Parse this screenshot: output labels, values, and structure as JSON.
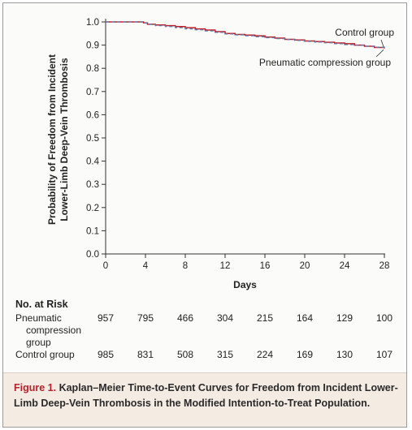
{
  "chart_data": {
    "type": "line",
    "ylabel_lines": [
      "Probability of Freedom from Incident",
      "Lower-Limb Deep-Vein Thrombosis"
    ],
    "xlabel": "Days",
    "xlim": [
      0,
      28
    ],
    "ylim": [
      0.0,
      1.0
    ],
    "x_ticks": [
      "0",
      "4",
      "8",
      "12",
      "16",
      "20",
      "24",
      "28"
    ],
    "y_ticks": [
      "0.0",
      "0.1",
      "0.2",
      "0.3",
      "0.4",
      "0.5",
      "0.6",
      "0.7",
      "0.8",
      "0.9",
      "1.0"
    ],
    "series": [
      {
        "name": "Control group",
        "color": "#c0202a",
        "style": "solid",
        "points": [
          [
            0,
            1.0
          ],
          [
            1,
            1.0
          ],
          [
            2,
            1.0
          ],
          [
            3,
            1.0
          ],
          [
            3.8,
            0.996
          ],
          [
            4.2,
            0.99
          ],
          [
            5,
            0.987
          ],
          [
            6,
            0.984
          ],
          [
            7,
            0.98
          ],
          [
            8,
            0.975
          ],
          [
            9,
            0.97
          ],
          [
            10,
            0.965
          ],
          [
            11,
            0.958
          ],
          [
            12,
            0.95
          ],
          [
            13,
            0.946
          ],
          [
            14,
            0.943
          ],
          [
            15,
            0.94
          ],
          [
            16,
            0.935
          ],
          [
            17,
            0.93
          ],
          [
            18,
            0.925
          ],
          [
            19,
            0.922
          ],
          [
            20,
            0.918
          ],
          [
            21,
            0.915
          ],
          [
            22,
            0.912
          ],
          [
            23,
            0.909
          ],
          [
            24,
            0.906
          ],
          [
            25,
            0.9
          ],
          [
            26,
            0.895
          ],
          [
            27,
            0.89
          ],
          [
            28,
            0.886
          ]
        ]
      },
      {
        "name": "Pneumatic compression group",
        "color": "#5a7fb0",
        "style": "dashed",
        "points": [
          [
            0,
            1.0
          ],
          [
            1,
            1.0
          ],
          [
            2,
            1.0
          ],
          [
            3,
            1.0
          ],
          [
            3.8,
            0.995
          ],
          [
            4.2,
            0.989
          ],
          [
            5,
            0.984
          ],
          [
            6,
            0.98
          ],
          [
            7,
            0.975
          ],
          [
            8,
            0.97
          ],
          [
            9,
            0.966
          ],
          [
            10,
            0.961
          ],
          [
            11,
            0.955
          ],
          [
            12,
            0.948
          ],
          [
            13,
            0.944
          ],
          [
            14,
            0.94
          ],
          [
            15,
            0.936
          ],
          [
            16,
            0.932
          ],
          [
            17,
            0.928
          ],
          [
            18,
            0.924
          ],
          [
            19,
            0.92
          ],
          [
            20,
            0.916
          ],
          [
            21,
            0.913
          ],
          [
            22,
            0.91
          ],
          [
            23,
            0.906
          ],
          [
            24,
            0.902
          ],
          [
            25,
            0.899
          ],
          [
            26,
            0.895
          ],
          [
            27,
            0.891
          ],
          [
            28,
            0.887
          ]
        ]
      }
    ]
  },
  "risk_table": {
    "title": "No. at Risk",
    "rows": [
      {
        "label_lines": [
          "Pneumatic",
          "compression",
          "group"
        ],
        "values": [
          "957",
          "795",
          "466",
          "304",
          "215",
          "164",
          "129",
          "100"
        ]
      },
      {
        "label_lines": [
          "Control group"
        ],
        "values": [
          "985",
          "831",
          "508",
          "315",
          "224",
          "169",
          "130",
          "107"
        ]
      }
    ]
  },
  "caption": {
    "label": "Figure 1.",
    "text": "Kaplan–Meier Time-to-Event Curves for Freedom from Incident Lower-Limb Deep-Vein Thrombosis in the Modified Intention-to-Treat Population."
  }
}
